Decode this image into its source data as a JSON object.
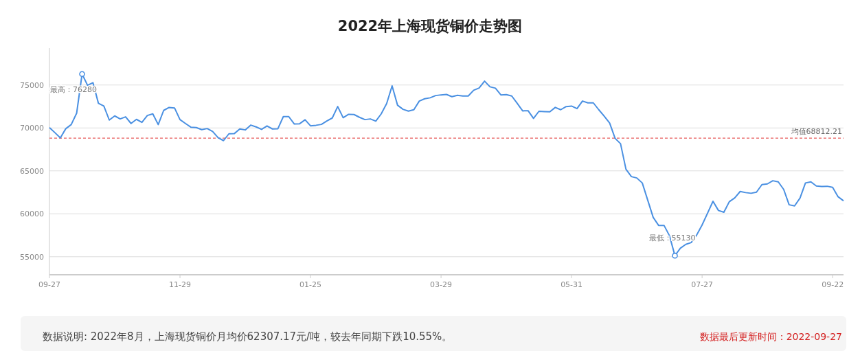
{
  "chart_data": {
    "type": "line",
    "title": "2022年上海现货铜价走势图",
    "categories": [
      "09-27",
      null,
      null,
      null,
      null,
      null,
      null,
      null,
      null,
      null,
      null,
      null,
      null,
      null,
      null,
      null,
      null,
      null,
      null,
      null,
      null,
      null,
      null,
      null,
      "11-29",
      null,
      null,
      null,
      null,
      null,
      null,
      null,
      null,
      null,
      null,
      null,
      null,
      null,
      null,
      null,
      null,
      null,
      null,
      null,
      null,
      null,
      null,
      null,
      "01-25",
      null,
      null,
      null,
      null,
      null,
      null,
      null,
      null,
      null,
      null,
      null,
      null,
      null,
      null,
      null,
      null,
      null,
      null,
      null,
      null,
      null,
      null,
      null,
      "03-29",
      null,
      null,
      null,
      null,
      null,
      null,
      null,
      null,
      null,
      null,
      null,
      null,
      null,
      null,
      null,
      null,
      null,
      null,
      null,
      null,
      null,
      null,
      null,
      "05-31",
      null,
      null,
      null,
      null,
      null,
      null,
      null,
      null,
      null,
      null,
      null,
      null,
      null,
      null,
      null,
      null,
      null,
      null,
      null,
      null,
      null,
      null,
      null,
      "07-27",
      null,
      null,
      null,
      null,
      null,
      null,
      null,
      null,
      null,
      null,
      null,
      null,
      null,
      null,
      null,
      null,
      null,
      null,
      null,
      null,
      null,
      null,
      null,
      "09-22",
      null,
      null
    ],
    "series": [
      {
        "color": "#4a90e2",
        "values": [
          70040,
          69450,
          68840,
          69910,
          70390,
          71720,
          76280,
          74970,
          75270,
          72870,
          72550,
          70920,
          71400,
          71050,
          71290,
          70520,
          71000,
          70650,
          71450,
          71640,
          70390,
          72040,
          72390,
          72330,
          70970,
          70520,
          70090,
          70040,
          69800,
          69930,
          69590,
          68870,
          68520,
          69320,
          69350,
          69880,
          69770,
          70330,
          70120,
          69830,
          70230,
          69880,
          69910,
          71320,
          71320,
          70470,
          70490,
          70950,
          70250,
          70310,
          70410,
          70810,
          71160,
          72490,
          71190,
          71590,
          71560,
          71240,
          70970,
          71050,
          70790,
          71640,
          72840,
          74900,
          72650,
          72170,
          71960,
          72120,
          73130,
          73400,
          73510,
          73770,
          73850,
          73900,
          73640,
          73800,
          73720,
          73720,
          74390,
          74650,
          75450,
          74790,
          74630,
          73850,
          73880,
          73720,
          72870,
          71990,
          72010,
          71110,
          71940,
          71910,
          71880,
          72390,
          72120,
          72490,
          72550,
          72250,
          73130,
          72920,
          72920,
          72120,
          71370,
          70570,
          68790,
          68170,
          65190,
          64330,
          64170,
          63590,
          61590,
          59590,
          58650,
          58650,
          57450,
          55130,
          55990,
          56440,
          56650,
          57530,
          58700,
          60070,
          61460,
          60390,
          60180,
          61410,
          61850,
          62600,
          62470,
          62390,
          62520,
          63400,
          63480,
          63850,
          63720,
          62840,
          61050,
          60920,
          61830,
          63590,
          63720,
          63240,
          63190,
          63210,
          63080,
          61990,
          61510
        ]
      }
    ],
    "ylim": [
      52900,
      79300
    ],
    "yticks": [
      55000,
      60000,
      65000,
      70000,
      75000
    ],
    "grid": "y",
    "marker": "none",
    "line_style": "solid",
    "ref_lines": [
      {
        "axis": "y",
        "value": 68812.21,
        "label": "均值68812.21",
        "color": "#e03030",
        "line_style": "dashed"
      }
    ],
    "annotations": [
      "最高：76280",
      "最低：55130",
      "数据说明: 2022年8月，上海现货铜价月均价62307.17元/吨，较去年同期下跌10.55%。",
      "数据最后更新时间：2022-09-27"
    ]
  }
}
